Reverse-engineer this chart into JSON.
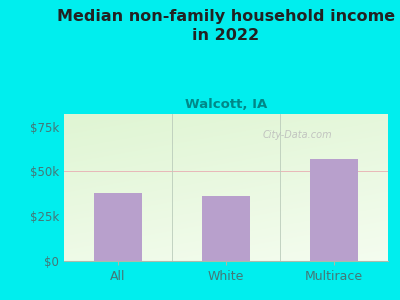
{
  "categories": [
    "All",
    "White",
    "Multirace"
  ],
  "values": [
    38000,
    36000,
    57000
  ],
  "bar_color": "#b8a0cc",
  "title": "Median non-family household income\nin 2022",
  "subtitle": "Walcott, IA",
  "title_fontsize": 11.5,
  "subtitle_fontsize": 9.5,
  "xlabel_fontsize": 9,
  "ylabel_fontsize": 8.5,
  "background_color": "#00EEEE",
  "plot_bg_color_topleft": "#d8eed4",
  "plot_bg_color_bottomright": "#f5fbf0",
  "yticks": [
    0,
    25000,
    50000,
    75000
  ],
  "ytick_labels": [
    "$0",
    "$25k",
    "$50k",
    "$75k"
  ],
  "ylim": [
    0,
    82000
  ],
  "grid_color": "#e8b8b8",
  "title_color": "#222222",
  "subtitle_color": "#008888",
  "tick_color": "#447777",
  "watermark_text": "City-Data.com",
  "watermark_color": "#bbbbbb",
  "separator_color": "#bbccbb"
}
